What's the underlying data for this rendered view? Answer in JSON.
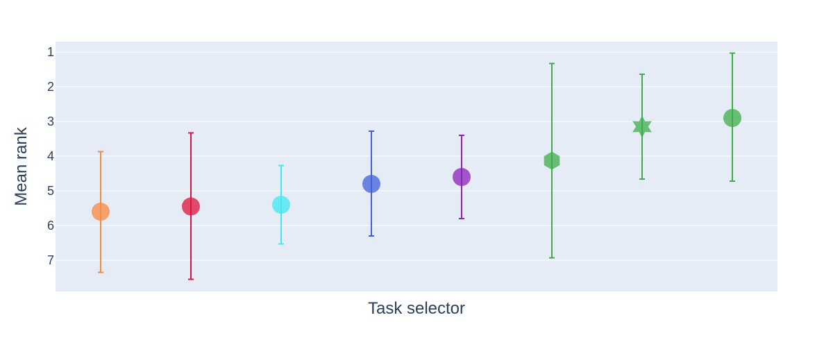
{
  "chart_data": {
    "type": "scatter",
    "title": "",
    "xlabel": "Task selector",
    "ylabel": "Mean rank",
    "y_reversed": true,
    "ylim": [
      7.9,
      0.7
    ],
    "yticks": [
      1,
      2,
      3,
      4,
      5,
      6,
      7
    ],
    "grid": true,
    "legend": "none",
    "plot_bg": "#e5ecf6",
    "grid_color": "#ffffff",
    "text_color": "#2a3f5f",
    "points": [
      {
        "x": 1,
        "y": 5.6,
        "err_low": 7.35,
        "err_high": 3.87,
        "color": "#f58a3d",
        "symbol": "circle"
      },
      {
        "x": 2,
        "y": 5.45,
        "err_low": 7.55,
        "err_high": 3.33,
        "color": "#dc143c",
        "symbol": "circle"
      },
      {
        "x": 3,
        "y": 5.4,
        "err_low": 6.53,
        "err_high": 4.27,
        "color": "#40e8f0",
        "symbol": "circle"
      },
      {
        "x": 4,
        "y": 4.8,
        "err_low": 6.3,
        "err_high": 3.28,
        "color": "#4060d8",
        "symbol": "circle"
      },
      {
        "x": 5,
        "y": 4.6,
        "err_low": 5.8,
        "err_high": 3.4,
        "color": "#8b22b8",
        "symbol": "circle"
      },
      {
        "x": 6,
        "y": 4.13,
        "err_low": 6.93,
        "err_high": 1.33,
        "color": "#3cad48",
        "symbol": "hexagon"
      },
      {
        "x": 7,
        "y": 3.15,
        "err_low": 4.66,
        "err_high": 1.64,
        "color": "#3cad48",
        "symbol": "star-6"
      },
      {
        "x": 8,
        "y": 2.9,
        "err_low": 4.72,
        "err_high": 1.03,
        "color": "#3cad48",
        "symbol": "circle"
      }
    ]
  }
}
